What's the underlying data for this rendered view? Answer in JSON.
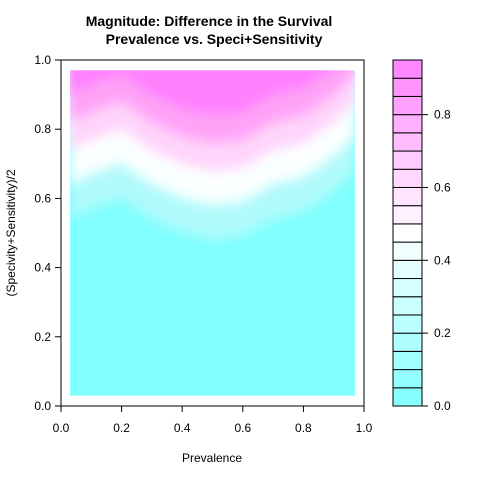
{
  "chart_data": {
    "type": "heatmap",
    "title_line1": "Magnitude: Difference in the Survival",
    "title_line2": "Prevalence vs. Speci+Sensitivity",
    "xlabel": "Prevalence",
    "ylabel": "(Specivity+Sensitivity)/2",
    "xlim": [
      0,
      1
    ],
    "ylim": [
      0,
      1
    ],
    "x_ticks": [
      "0.0",
      "0.2",
      "0.4",
      "0.6",
      "0.8",
      "1.0"
    ],
    "y_ticks": [
      "0.0",
      "0.2",
      "0.4",
      "0.6",
      "0.8",
      "1.0"
    ],
    "colorbar": {
      "range": [
        0,
        0.95
      ],
      "ticks": [
        "0.0",
        "0.2",
        "0.4",
        "0.6",
        "0.8"
      ],
      "levels": 19,
      "low_color": "#80ffff",
      "mid_color": "#ffffff",
      "high_color": "#ff80ff"
    },
    "data_extent": {
      "x": [
        0.03,
        0.97
      ],
      "y": [
        0.03,
        0.97
      ]
    },
    "boundary": {
      "description": "approximate x/y of the transition from low (cyan) to high (magenta) values",
      "x": [
        0.03,
        0.1,
        0.2,
        0.3,
        0.4,
        0.5,
        0.6,
        0.7,
        0.8,
        0.9,
        0.97
      ],
      "y": [
        0.72,
        0.75,
        0.78,
        0.72,
        0.68,
        0.66,
        0.67,
        0.72,
        0.74,
        0.8,
        0.86
      ]
    },
    "grid": false
  }
}
